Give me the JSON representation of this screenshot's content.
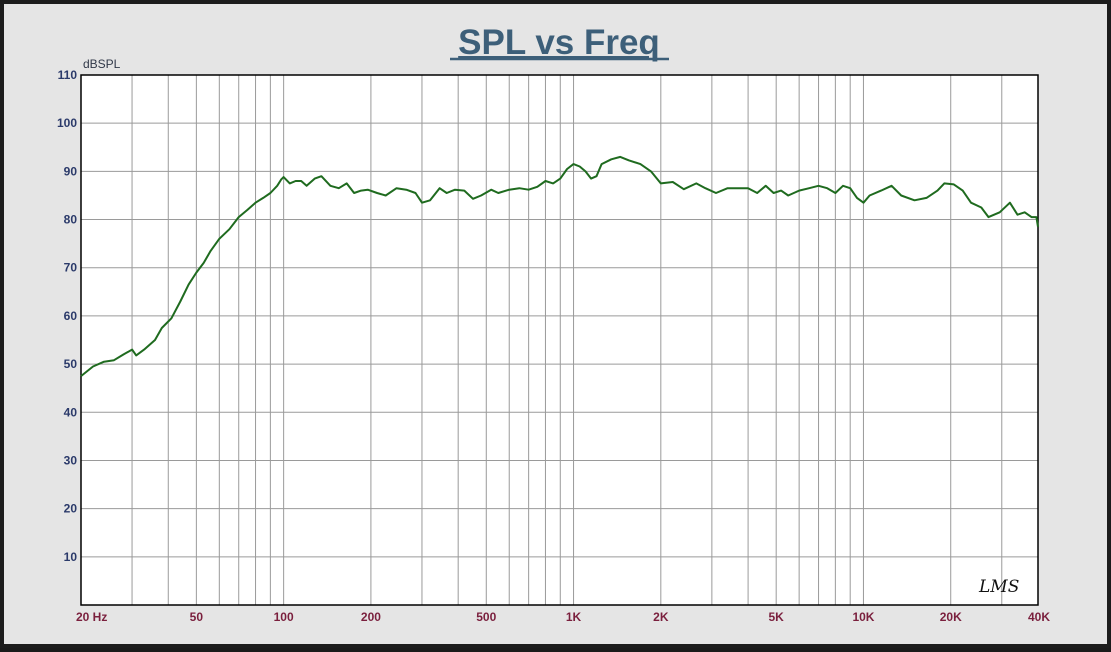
{
  "chart_data": {
    "type": "line",
    "title": "SPL vs Freq",
    "ylabel": "dBSPL",
    "xlabel": "",
    "x_scale": "log",
    "xlim": [
      20,
      40000
    ],
    "ylim": [
      0,
      110
    ],
    "grid": true,
    "legend": "none",
    "y_ticks": [
      {
        "value": 110,
        "label": "110"
      },
      {
        "value": 100,
        "label": "100"
      },
      {
        "value": 90,
        "label": "90"
      },
      {
        "value": 80,
        "label": "80"
      },
      {
        "value": 70,
        "label": "70"
      },
      {
        "value": 60,
        "label": "60"
      },
      {
        "value": 50,
        "label": "50"
      },
      {
        "value": 40,
        "label": "40"
      },
      {
        "value": 30,
        "label": "30"
      },
      {
        "value": 20,
        "label": "20"
      },
      {
        "value": 10,
        "label": "10"
      }
    ],
    "x_ticks": [
      {
        "value": 20,
        "label": "20  Hz"
      },
      {
        "value": 50,
        "label": "50"
      },
      {
        "value": 100,
        "label": "100"
      },
      {
        "value": 200,
        "label": "200"
      },
      {
        "value": 500,
        "label": "500"
      },
      {
        "value": 1000,
        "label": "1K"
      },
      {
        "value": 2000,
        "label": "2K"
      },
      {
        "value": 5000,
        "label": "5K"
      },
      {
        "value": 10000,
        "label": "10K"
      },
      {
        "value": 20000,
        "label": "20K"
      },
      {
        "value": 40000,
        "label": "40K"
      }
    ],
    "series": [
      {
        "color": "#1f6b1f",
        "points": [
          [
            20,
            47.5
          ],
          [
            22,
            49.5
          ],
          [
            24,
            50.5
          ],
          [
            26,
            50.8
          ],
          [
            28,
            52
          ],
          [
            30,
            53
          ],
          [
            31,
            51.8
          ],
          [
            33,
            53
          ],
          [
            36,
            55
          ],
          [
            38,
            57.5
          ],
          [
            41,
            59.5
          ],
          [
            44,
            63
          ],
          [
            47,
            66.5
          ],
          [
            50,
            69
          ],
          [
            53,
            71
          ],
          [
            56,
            73.5
          ],
          [
            60,
            76
          ],
          [
            65,
            78
          ],
          [
            70,
            80.5
          ],
          [
            75,
            82
          ],
          [
            80,
            83.5
          ],
          [
            85,
            84.5
          ],
          [
            90,
            85.5
          ],
          [
            95,
            87
          ],
          [
            98,
            88.3
          ],
          [
            100,
            88.8
          ],
          [
            105,
            87.5
          ],
          [
            110,
            88
          ],
          [
            115,
            88
          ],
          [
            120,
            87
          ],
          [
            128,
            88.5
          ],
          [
            135,
            89
          ],
          [
            145,
            87
          ],
          [
            155,
            86.5
          ],
          [
            165,
            87.5
          ],
          [
            175,
            85.5
          ],
          [
            185,
            86
          ],
          [
            195,
            86.2
          ],
          [
            210,
            85.5
          ],
          [
            225,
            85
          ],
          [
            245,
            86.5
          ],
          [
            265,
            86.2
          ],
          [
            285,
            85.5
          ],
          [
            300,
            83.5
          ],
          [
            320,
            84
          ],
          [
            345,
            86.5
          ],
          [
            365,
            85.5
          ],
          [
            390,
            86.2
          ],
          [
            420,
            86
          ],
          [
            450,
            84.3
          ],
          [
            480,
            85
          ],
          [
            520,
            86.2
          ],
          [
            550,
            85.5
          ],
          [
            600,
            86.2
          ],
          [
            650,
            86.5
          ],
          [
            700,
            86.2
          ],
          [
            750,
            86.8
          ],
          [
            800,
            88
          ],
          [
            850,
            87.5
          ],
          [
            900,
            88.5
          ],
          [
            950,
            90.5
          ],
          [
            1000,
            91.5
          ],
          [
            1050,
            91
          ],
          [
            1100,
            90
          ],
          [
            1150,
            88.5
          ],
          [
            1200,
            89
          ],
          [
            1250,
            91.5
          ],
          [
            1350,
            92.5
          ],
          [
            1450,
            93
          ],
          [
            1550,
            92.3
          ],
          [
            1700,
            91.5
          ],
          [
            1850,
            90
          ],
          [
            2000,
            87.5
          ],
          [
            2200,
            87.8
          ],
          [
            2400,
            86.3
          ],
          [
            2650,
            87.5
          ],
          [
            2850,
            86.5
          ],
          [
            3100,
            85.5
          ],
          [
            3400,
            86.5
          ],
          [
            3700,
            86.5
          ],
          [
            4000,
            86.5
          ],
          [
            4300,
            85.5
          ],
          [
            4600,
            87
          ],
          [
            4900,
            85.5
          ],
          [
            5200,
            86
          ],
          [
            5500,
            85
          ],
          [
            6000,
            86
          ],
          [
            6500,
            86.5
          ],
          [
            7000,
            87
          ],
          [
            7500,
            86.5
          ],
          [
            8000,
            85.5
          ],
          [
            8500,
            87
          ],
          [
            9000,
            86.5
          ],
          [
            9500,
            84.5
          ],
          [
            10000,
            83.5
          ],
          [
            10500,
            85
          ],
          [
            11500,
            86
          ],
          [
            12500,
            87
          ],
          [
            13500,
            85
          ],
          [
            15000,
            84
          ],
          [
            16500,
            84.5
          ],
          [
            18000,
            86
          ],
          [
            19000,
            87.5
          ],
          [
            20500,
            87.3
          ],
          [
            22000,
            86
          ],
          [
            23500,
            83.5
          ],
          [
            25500,
            82.5
          ],
          [
            27000,
            80.5
          ],
          [
            29500,
            81.5
          ],
          [
            32000,
            83.5
          ],
          [
            34000,
            81
          ],
          [
            36000,
            81.5
          ],
          [
            38000,
            80.5
          ],
          [
            39500,
            80.5
          ],
          [
            40000,
            78.5
          ]
        ]
      }
    ]
  },
  "logo": {
    "text": "LMS"
  }
}
